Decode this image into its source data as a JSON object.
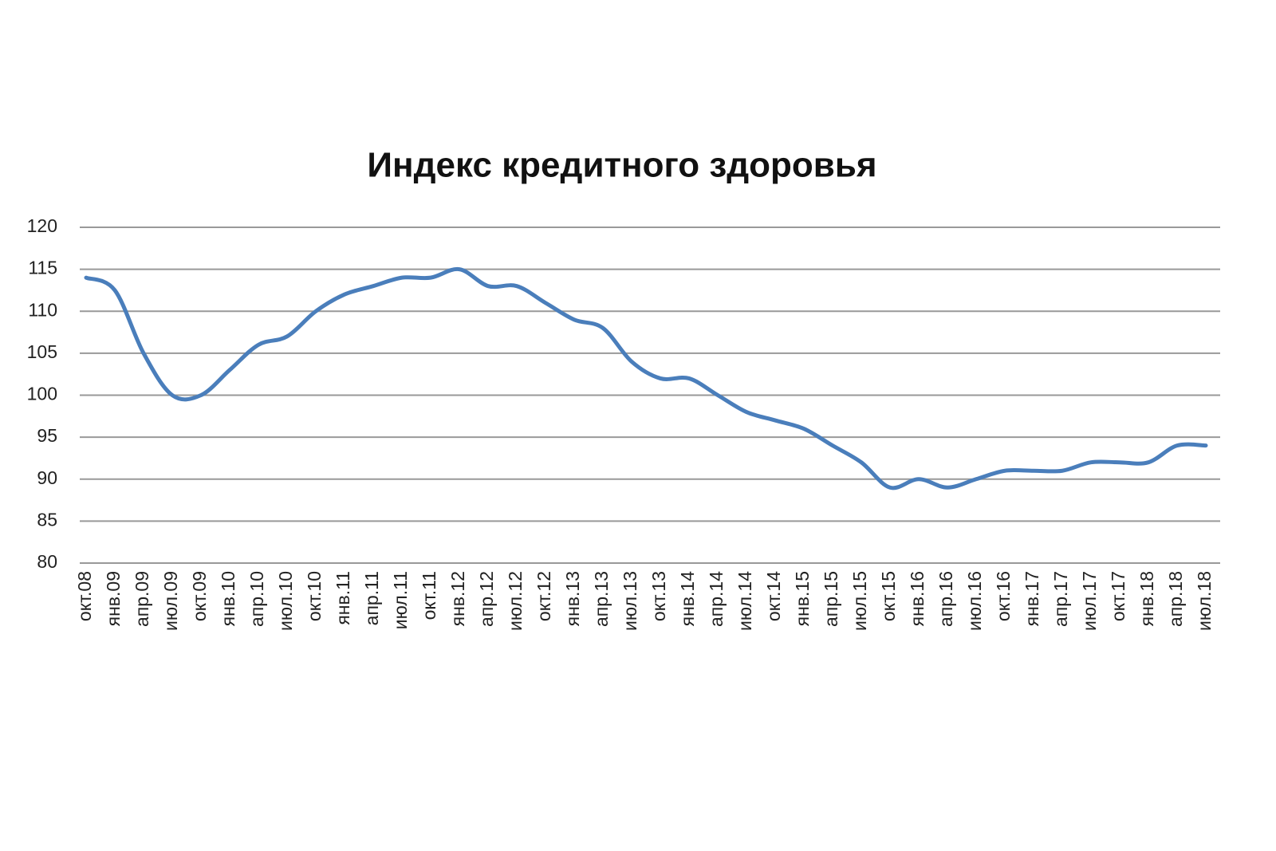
{
  "chart_data": {
    "type": "line",
    "title": "Индекс кредитного здоровья",
    "categories": [
      "окт.08",
      "янв.09",
      "апр.09",
      "июл.09",
      "окт.09",
      "янв.10",
      "апр.10",
      "июл.10",
      "окт.10",
      "янв.11",
      "апр.11",
      "июл.11",
      "окт.11",
      "янв.12",
      "апр.12",
      "июл.12",
      "окт.12",
      "янв.13",
      "апр.13",
      "июл.13",
      "окт.13",
      "янв.14",
      "апр.14",
      "июл.14",
      "окт.14",
      "янв.15",
      "апр.15",
      "июл.15",
      "окт.15",
      "янв.16",
      "апр.16",
      "июл.16",
      "окт.16",
      "янв.17",
      "апр.17",
      "июл.17",
      "окт.17",
      "янв.18",
      "апр.18",
      "июл.18"
    ],
    "values": [
      114,
      112.5,
      105,
      100,
      100,
      103,
      106,
      107,
      110,
      112,
      113,
      114,
      114,
      115,
      113,
      113,
      111,
      109,
      108,
      104,
      102,
      102,
      100,
      98,
      97,
      96,
      94,
      92,
      89,
      90,
      89,
      90,
      91,
      91,
      91,
      92,
      92,
      92,
      94,
      94
    ],
    "color": "#4a7ebb",
    "ylim": [
      80,
      120
    ],
    "yticks": [
      80,
      85,
      90,
      95,
      100,
      105,
      110,
      115,
      120
    ],
    "grid": true
  }
}
